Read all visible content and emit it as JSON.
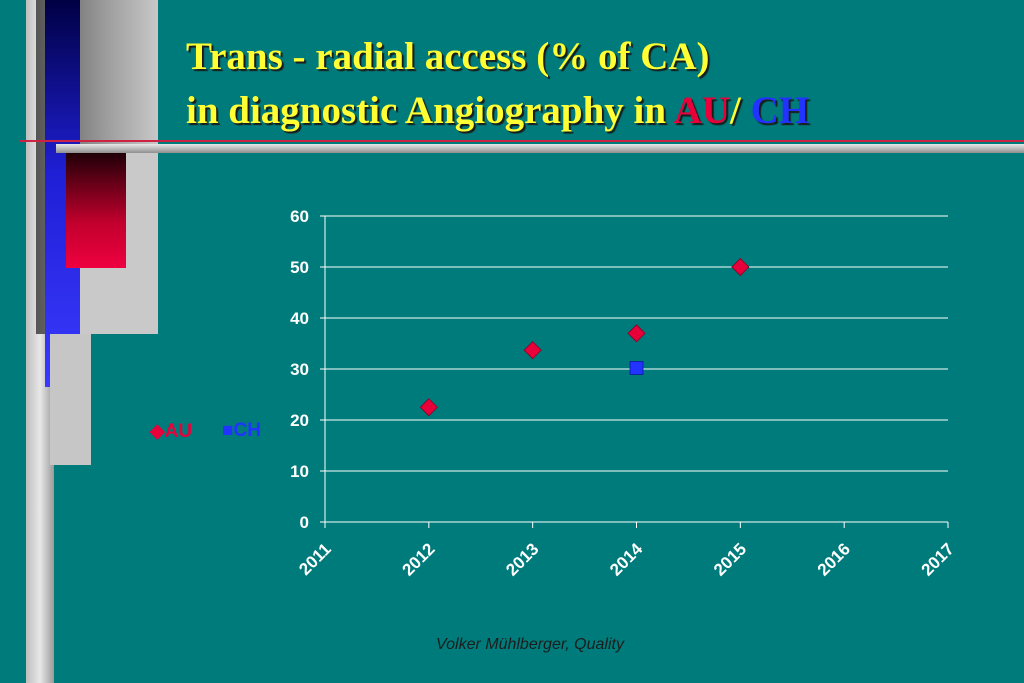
{
  "title": {
    "line1": "Trans - radial access (% of CA)",
    "line2_prefix": "in diagnostic Angiography in ",
    "au": "AU",
    "sep": "/ ",
    "ch": "CH"
  },
  "footer": "Volker Mühlberger, Quality",
  "colors": {
    "background": "#007b7b",
    "title": "#ffff33",
    "au": "#e8003a",
    "ch": "#2233ff"
  },
  "chart_data": {
    "type": "scatter",
    "title": "",
    "xlabel": "",
    "ylabel": "",
    "xlim": [
      2011,
      2017
    ],
    "ylim": [
      0,
      60
    ],
    "xticks": [
      2011,
      2012,
      2013,
      2014,
      2015,
      2016,
      2017
    ],
    "yticks": [
      0,
      10,
      20,
      30,
      40,
      50,
      60
    ],
    "grid": true,
    "legend_position": "left",
    "series": [
      {
        "name": "AU",
        "marker": "diamond",
        "color": "#e8003a",
        "points": [
          {
            "x": 2012,
            "y": 22.5
          },
          {
            "x": 2013,
            "y": 33.7
          },
          {
            "x": 2014,
            "y": 37
          },
          {
            "x": 2015,
            "y": 50
          }
        ]
      },
      {
        "name": "CH",
        "marker": "square",
        "color": "#2233ff",
        "points": [
          {
            "x": 2014,
            "y": 30.2
          }
        ]
      }
    ]
  }
}
